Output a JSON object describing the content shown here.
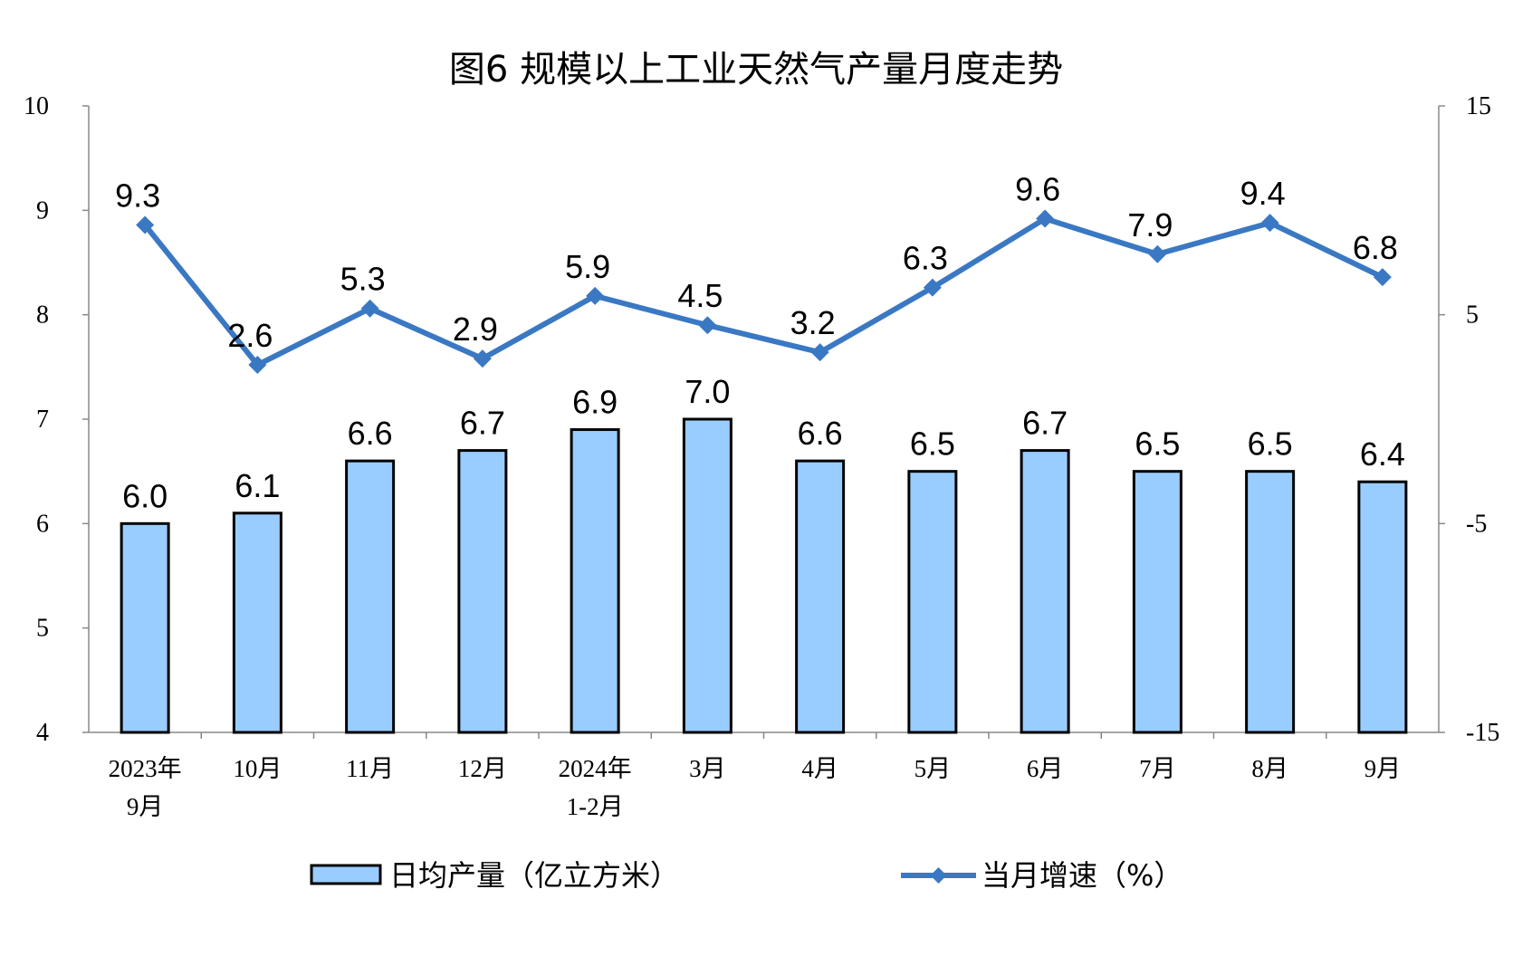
{
  "chart_data": {
    "type": "bar+line",
    "title": "图6  规模以上工业天然气产量月度走势",
    "categories": [
      [
        "2023年",
        "9月"
      ],
      [
        "10月"
      ],
      [
        "11月"
      ],
      [
        "12月"
      ],
      [
        "2024年",
        "1-2月"
      ],
      [
        "3月"
      ],
      [
        "4月"
      ],
      [
        "5月"
      ],
      [
        "6月"
      ],
      [
        "7月"
      ],
      [
        "8月"
      ],
      [
        "9月"
      ]
    ],
    "left_axis": {
      "range": [
        4,
        10
      ],
      "ticks": [
        "4",
        "5",
        "6",
        "7",
        "8",
        "9",
        "10"
      ]
    },
    "right_axis": {
      "range": [
        -15,
        15
      ],
      "ticks": [
        "-15",
        "-5",
        "5",
        "15"
      ]
    },
    "grid": false,
    "legend_placement": "bottom",
    "series": [
      {
        "name": "日均产量（亿立方米）",
        "type": "bar",
        "axis": "left",
        "color": "#99CCFF",
        "edge_color": "#000000",
        "values": [
          6.0,
          6.1,
          6.6,
          6.7,
          6.9,
          7.0,
          6.6,
          6.5,
          6.7,
          6.5,
          6.5,
          6.4
        ],
        "labels": [
          "6.0",
          "6.1",
          "6.6",
          "6.7",
          "6.9",
          "7.0",
          "6.6",
          "6.5",
          "6.7",
          "6.5",
          "6.5",
          "6.4"
        ]
      },
      {
        "name": "当月增速（%）",
        "type": "line",
        "axis": "right",
        "color": "#3A78C3",
        "marker": "diamond",
        "values": [
          9.3,
          2.6,
          5.3,
          2.9,
          5.9,
          4.5,
          3.2,
          6.3,
          9.6,
          7.9,
          9.4,
          6.8
        ],
        "labels": [
          "9.3",
          "2.6",
          "5.3",
          "2.9",
          "5.9",
          "4.5",
          "3.2",
          "6.3",
          "9.6",
          "7.9",
          "9.4",
          "6.8"
        ]
      }
    ]
  }
}
